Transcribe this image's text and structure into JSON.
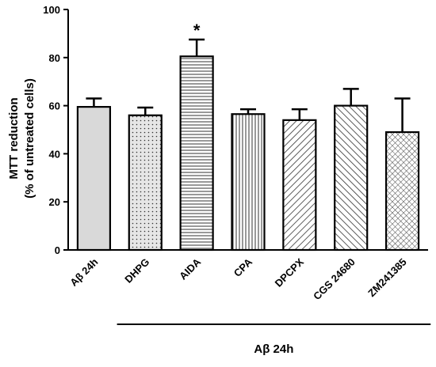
{
  "chart_data": {
    "type": "bar",
    "title": "",
    "ylabel_line1": "MTT reduction",
    "ylabel_line2": "(% of untreated cells)",
    "xlabel": "",
    "ylim": [
      0,
      100
    ],
    "yticks": [
      0,
      20,
      40,
      60,
      80,
      100
    ],
    "categories": [
      "Aβ 24h",
      "DHPG",
      "AIDA",
      "CPA",
      "DPCPX",
      "CGS 24680",
      "ZM241385"
    ],
    "values": [
      59.5,
      56,
      80.5,
      56.5,
      54,
      60,
      49
    ],
    "errors": [
      3.5,
      3.2,
      7,
      2,
      4.5,
      7,
      14
    ],
    "patterns": [
      "solid",
      "dots",
      "hlines",
      "vlines",
      "diag-left",
      "diag-right",
      "crosshatch"
    ],
    "annotations": [
      {
        "category": "AIDA",
        "text": "*"
      }
    ],
    "group_bracket": {
      "label": "Aβ 24h",
      "from_category": "DHPG",
      "to_category": "ZM241385"
    },
    "grid": false,
    "legend": "none",
    "bar_fill": "#d9d9d9",
    "edge_color": "#000000"
  }
}
